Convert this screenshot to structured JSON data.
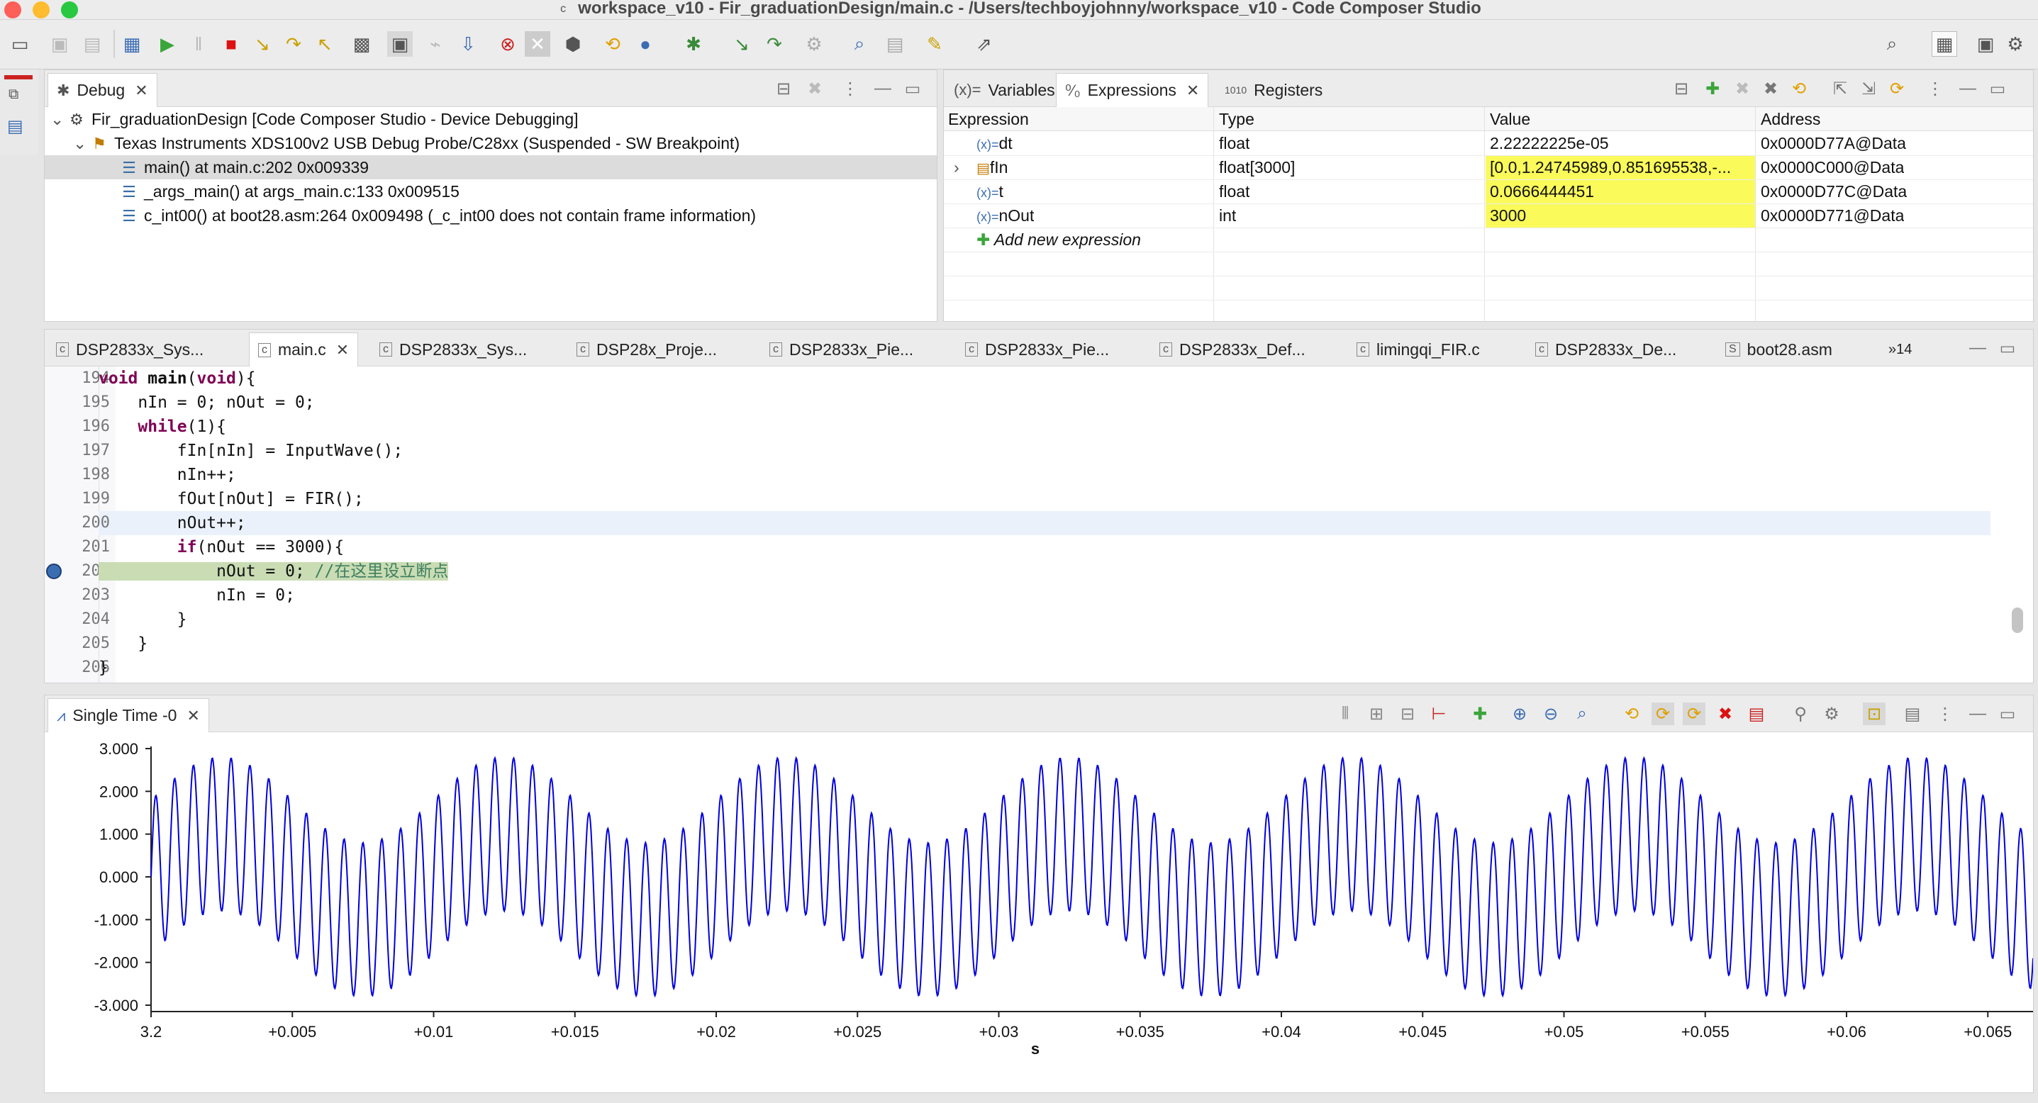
{
  "window": {
    "title": "workspace_v10 - Fir_graduationDesign/main.c - /Users/techboyjohnny/workspace_v10 - Code Composer Studio"
  },
  "debug_view": {
    "tab_label": "Debug",
    "rows": [
      {
        "text": "Fir_graduationDesign [Code Composer Studio - Device Debugging]"
      },
      {
        "text": "Texas Instruments XDS100v2 USB Debug Probe/C28xx (Suspended - SW Breakpoint)"
      },
      {
        "text": "main() at main.c:202 0x009339"
      },
      {
        "text": "_args_main() at args_main.c:133 0x009515"
      },
      {
        "text": "c_int00() at boot28.asm:264 0x009498  (_c_int00 does not contain frame information)"
      }
    ]
  },
  "expressions_view": {
    "tabs": [
      "Variables",
      "Expressions",
      "Registers"
    ],
    "columns": [
      "Expression",
      "Type",
      "Value",
      "Address"
    ],
    "rows": [
      {
        "name": "dt",
        "type": "float",
        "value": "2.22222225e-05",
        "address": "0x0000D77A@Data",
        "changed": false
      },
      {
        "name": "fIn",
        "type": "float[3000]",
        "value": "[0.0,1.24745989,0.851695538,-...",
        "address": "0x0000C000@Data",
        "changed": true
      },
      {
        "name": "t",
        "type": "float",
        "value": "0.0666444451",
        "address": "0x0000D77C@Data",
        "changed": true
      },
      {
        "name": "nOut",
        "type": "int",
        "value": "3000",
        "address": "0x0000D771@Data",
        "changed": true
      }
    ],
    "add_new": "Add new expression"
  },
  "editor": {
    "tabs": [
      "DSP2833x_Sys...",
      "main.c",
      "DSP2833x_Sys...",
      "DSP28x_Proje...",
      "DSP2833x_Pie...",
      "DSP2833x_Pie...",
      "DSP2833x_Def...",
      "limingqi_FIR.c",
      "DSP2833x_De...",
      "boot28.asm"
    ],
    "overflow_count": "»14",
    "lines": [
      {
        "num": "194",
        "code": "void main(void){"
      },
      {
        "num": "195",
        "code": "    nIn = 0; nOut = 0;"
      },
      {
        "num": "196",
        "code": "    while(1){"
      },
      {
        "num": "197",
        "code": "        fIn[nIn] = InputWave();"
      },
      {
        "num": "198",
        "code": "        nIn++;"
      },
      {
        "num": "199",
        "code": "        fOut[nOut] = FIR();"
      },
      {
        "num": "200",
        "code": "        nOut++;"
      },
      {
        "num": "201",
        "code": "        if(nOut == 3000){"
      },
      {
        "num": "202",
        "code": "            nOut = 0; //在这里设立断点"
      },
      {
        "num": "203",
        "code": "            nIn = 0;"
      },
      {
        "num": "204",
        "code": "        }"
      },
      {
        "num": "205",
        "code": "    }"
      },
      {
        "num": "206",
        "code": "}"
      }
    ]
  },
  "graph_view": {
    "tab_label": "Single Time -0",
    "chart_data": {
      "type": "line",
      "xlabel": "s",
      "x_tick_labels": [
        "3.2",
        "+0.005",
        "+0.01",
        "+0.015",
        "+0.02",
        "+0.025",
        "+0.03",
        "+0.035",
        "+0.04",
        "+0.045",
        "+0.05",
        "+0.055",
        "+0.06",
        "+0.065"
      ],
      "x_ticks": [
        0,
        0.005,
        0.01,
        0.015,
        0.02,
        0.025,
        0.03,
        0.035,
        0.04,
        0.045,
        0.05,
        0.055,
        0.06,
        0.065
      ],
      "xlim": [
        0,
        0.0666
      ],
      "y_tick_labels": [
        "3.000",
        "2.000",
        "1.000",
        "0.000",
        "-1.000",
        "-2.000",
        "-3.000"
      ],
      "y_ticks": [
        3,
        2,
        1,
        0,
        -1,
        -2,
        -3
      ],
      "ylim": [
        -3.05,
        3.05
      ],
      "series": [
        {
          "color": "#0000dd",
          "components": [
            {
              "amplitude": 1.0,
              "frequency_hz": 100
            },
            {
              "amplitude": 1.8,
              "frequency_hz": 1500
            }
          ],
          "samples": 3000
        }
      ]
    }
  },
  "colors": {
    "accent": "#fafa5a",
    "breakpoint_line": "#c9dcb4",
    "current_line": "#eaf1fb",
    "plot_line": "#0000dd"
  }
}
